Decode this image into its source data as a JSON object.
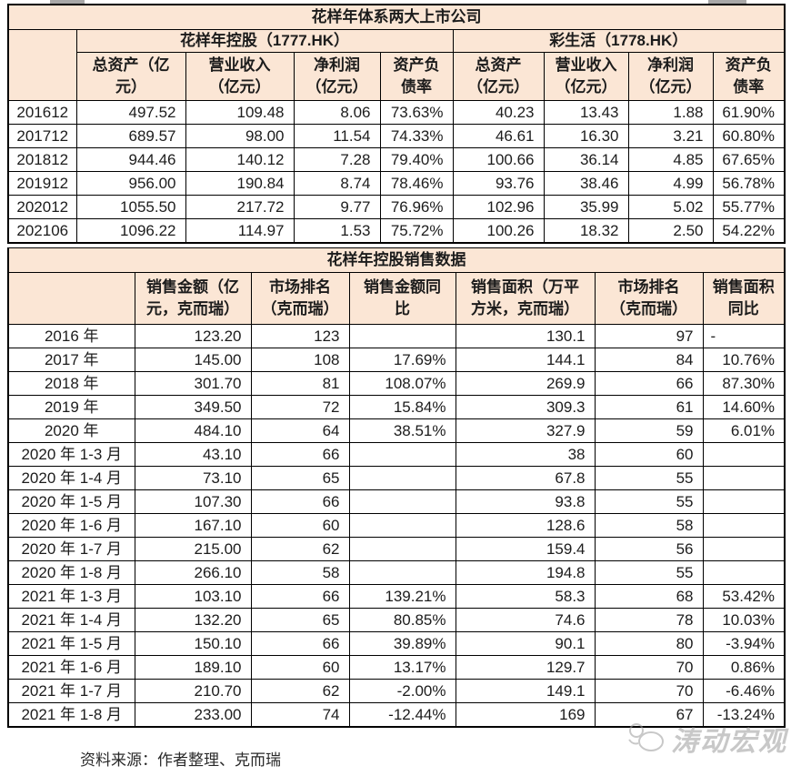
{
  "page": {
    "source_note": "资料来源：作者整理、克而瑞",
    "watermark_text": "涛动宏观",
    "colors": {
      "header_bg": "#fbe6d5",
      "border": "#000000",
      "watermark_gray": "#9c9c9c"
    },
    "icons": {
      "watermark_logo": "cartoon-mascot-logo"
    }
  },
  "table1": {
    "title": "花样年体系两大上市公司",
    "company_groups": [
      {
        "name": "花样年控股（1777.HK）"
      },
      {
        "name": "彩生活（1778.HK）"
      }
    ],
    "column_headers": [
      "总资产（亿元）",
      "营业收入（亿元）",
      "净利润（亿元）",
      "资产负债率",
      "总资产（亿元）",
      "营业收入（亿元）",
      "净利润（亿元）",
      "资产负债率"
    ],
    "rows": [
      {
        "period": "201612",
        "values": [
          "497.52",
          "109.48",
          "8.06",
          "73.63%",
          "40.23",
          "13.43",
          "1.88",
          "61.90%"
        ]
      },
      {
        "period": "201712",
        "values": [
          "689.57",
          "98.00",
          "11.54",
          "74.33%",
          "46.61",
          "16.30",
          "3.21",
          "60.80%"
        ]
      },
      {
        "period": "201812",
        "values": [
          "944.46",
          "140.12",
          "7.28",
          "79.40%",
          "100.66",
          "36.14",
          "4.85",
          "67.65%"
        ]
      },
      {
        "period": "201912",
        "values": [
          "956.00",
          "190.84",
          "8.74",
          "78.46%",
          "93.76",
          "38.46",
          "4.99",
          "56.78%"
        ]
      },
      {
        "period": "202012",
        "values": [
          "1055.50",
          "217.72",
          "9.77",
          "76.96%",
          "102.96",
          "35.99",
          "5.02",
          "55.77%"
        ]
      },
      {
        "period": "202106",
        "values": [
          "1096.22",
          "114.97",
          "1.53",
          "75.72%",
          "100.26",
          "18.32",
          "2.50",
          "54.22%"
        ]
      }
    ]
  },
  "table2": {
    "title": "花样年控股销售数据",
    "column_headers": [
      "销售金额（亿元，克而瑞）",
      "市场排名（克而瑞）",
      "销售金额同比",
      "销售面积（万平方米，克而瑞）",
      "市场排名（克而瑞）",
      "销售面积同比"
    ],
    "rows": [
      {
        "period": "2016 年",
        "values": [
          "123.20",
          "123",
          "",
          "130.1",
          "97",
          "-"
        ]
      },
      {
        "period": "2017 年",
        "values": [
          "145.00",
          "108",
          "17.69%",
          "144.1",
          "84",
          "10.76%"
        ]
      },
      {
        "period": "2018 年",
        "values": [
          "301.70",
          "81",
          "108.07%",
          "269.9",
          "66",
          "87.30%"
        ]
      },
      {
        "period": "2019 年",
        "values": [
          "349.50",
          "72",
          "15.84%",
          "309.3",
          "61",
          "14.60%"
        ]
      },
      {
        "period": "2020 年",
        "values": [
          "484.10",
          "64",
          "38.51%",
          "327.9",
          "59",
          "6.01%"
        ]
      },
      {
        "period": "2020 年 1-3 月",
        "values": [
          "43.10",
          "66",
          "",
          "38",
          "60",
          ""
        ]
      },
      {
        "period": "2020 年 1-4 月",
        "values": [
          "73.10",
          "65",
          "",
          "67.8",
          "55",
          ""
        ]
      },
      {
        "period": "2020 年 1-5 月",
        "values": [
          "107.30",
          "66",
          "",
          "93.8",
          "55",
          ""
        ]
      },
      {
        "period": "2020 年 1-6 月",
        "values": [
          "167.10",
          "60",
          "",
          "128.6",
          "58",
          ""
        ]
      },
      {
        "period": "2020 年 1-7 月",
        "values": [
          "215.00",
          "62",
          "",
          "159.4",
          "56",
          ""
        ]
      },
      {
        "period": "2020 年 1-8 月",
        "values": [
          "266.10",
          "58",
          "",
          "194.8",
          "55",
          ""
        ]
      },
      {
        "period": "2021 年 1-3 月",
        "values": [
          "103.10",
          "66",
          "139.21%",
          "58.3",
          "68",
          "53.42%"
        ]
      },
      {
        "period": "2021 年 1-4 月",
        "values": [
          "132.20",
          "65",
          "80.85%",
          "74.6",
          "78",
          "10.03%"
        ]
      },
      {
        "period": "2021 年 1-5 月",
        "values": [
          "150.10",
          "66",
          "39.89%",
          "90.1",
          "80",
          "-3.94%"
        ]
      },
      {
        "period": "2021 年 1-6 月",
        "values": [
          "189.10",
          "60",
          "13.17%",
          "129.7",
          "70",
          "0.86%"
        ]
      },
      {
        "period": "2021 年 1-7 月",
        "values": [
          "210.70",
          "62",
          "-2.00%",
          "149.1",
          "70",
          "-6.46%"
        ]
      },
      {
        "period": "2021 年 1-8 月",
        "values": [
          "233.00",
          "74",
          "-12.44%",
          "169",
          "67",
          "-13.24%"
        ]
      }
    ]
  }
}
